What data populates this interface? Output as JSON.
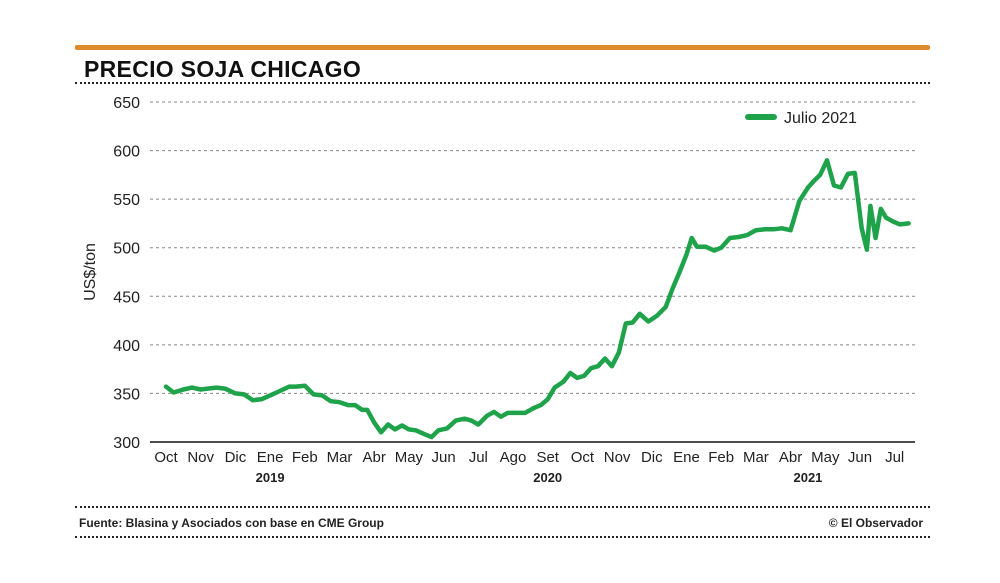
{
  "title": "PRECIO SOJA CHICAGO",
  "source": "Fuente: Blasina y Asociados con base en CME Group",
  "credit": "© El Observador",
  "colors": {
    "line": "#1fa34a",
    "accent": "#e08a2e",
    "grid": "#888888"
  },
  "chart_data": {
    "type": "line",
    "title": "PRECIO SOJA CHICAGO",
    "ylabel": "US$/ton",
    "xlabel": "",
    "ylim": [
      300,
      650
    ],
    "yticks": [
      300,
      350,
      400,
      450,
      500,
      550,
      600,
      650
    ],
    "grid": true,
    "legend_position": "top-right",
    "x_labels": [
      "Oct",
      "Nov",
      "Dic",
      "Ene",
      "Feb",
      "Mar",
      "Abr",
      "May",
      "Jun",
      "Jul",
      "Ago",
      "Set",
      "Oct",
      "Nov",
      "Dic",
      "Ene",
      "Feb",
      "Mar",
      "Abr",
      "May",
      "Jun",
      "Jul"
    ],
    "years": [
      {
        "label": "2019",
        "month_index": 3
      },
      {
        "label": "2020",
        "month_index": 11
      },
      {
        "label": "2021",
        "month_index": 18.5
      }
    ],
    "series": [
      {
        "name": "Julio 2021",
        "x": [
          0,
          0.22,
          0.5,
          0.75,
          1.0,
          1.2,
          1.45,
          1.7,
          2.0,
          2.25,
          2.5,
          2.75,
          3.0,
          3.25,
          3.55,
          3.75,
          4.0,
          4.25,
          4.5,
          4.75,
          5.0,
          5.25,
          5.45,
          5.65,
          5.8,
          6.0,
          6.2,
          6.4,
          6.6,
          6.8,
          7.0,
          7.2,
          7.45,
          7.65,
          7.85,
          8.1,
          8.35,
          8.6,
          8.8,
          9.0,
          9.25,
          9.45,
          9.65,
          9.85,
          10.1,
          10.35,
          10.6,
          10.8,
          11.0,
          11.2,
          11.45,
          11.65,
          11.85,
          12.05,
          12.25,
          12.45,
          12.65,
          12.85,
          13.05,
          13.25,
          13.45,
          13.65,
          13.9,
          14.15,
          14.4,
          14.6,
          14.8,
          15.0,
          15.15,
          15.3,
          15.55,
          15.8,
          16.0,
          16.25,
          16.5,
          16.75,
          17.0,
          17.25,
          17.5,
          17.75,
          18.0,
          18.25,
          18.5,
          18.65,
          18.85,
          19.05,
          19.25,
          19.45,
          19.65,
          19.85,
          20.05,
          20.2,
          20.3,
          20.45,
          20.6,
          20.75,
          20.95,
          21.15,
          21.4
        ],
        "values": [
          357,
          351,
          354,
          356,
          354,
          355,
          356,
          355,
          350,
          349,
          343,
          344,
          348,
          352,
          357,
          357,
          358,
          349,
          348,
          342,
          341,
          338,
          338,
          333,
          333,
          320,
          310,
          318,
          313,
          317,
          313,
          312,
          308,
          305,
          312,
          314,
          322,
          324,
          322,
          318,
          327,
          331,
          326,
          330,
          330,
          330,
          335,
          338,
          344,
          356,
          362,
          371,
          366,
          368,
          376,
          378,
          386,
          378,
          392,
          422,
          423,
          432,
          424,
          430,
          439,
          458,
          475,
          493,
          510,
          501,
          501,
          497,
          500,
          510,
          511,
          513,
          518,
          519,
          519,
          520,
          518,
          548,
          562,
          568,
          575,
          590,
          564,
          562,
          576,
          577,
          520,
          498,
          543,
          510,
          540,
          531,
          527,
          524,
          525
        ]
      }
    ]
  }
}
